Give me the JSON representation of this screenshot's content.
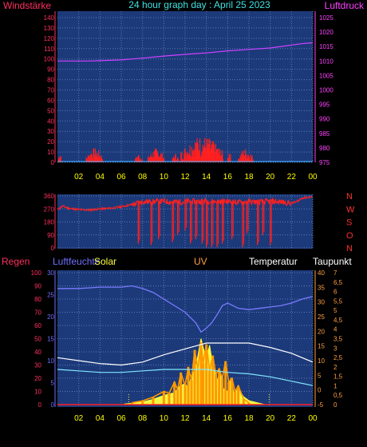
{
  "title": "24 hour graph day : April 25 2023",
  "labels": {
    "windstaerke": "Windstärke",
    "luftdruck": "Luftdruck",
    "regen": "Regen",
    "luftfeuchte": "Luftfeuchte",
    "solar": "Solar",
    "uv": "UV",
    "temperatur": "Temperatur",
    "taupunkt": "Taupunkt"
  },
  "colors": {
    "panel": "#1c3a7a",
    "grid": "#5a78b0",
    "wind": "#ff2020",
    "pressure": "#d040ff",
    "humidity": "#7a7aff",
    "temperature": "#ffffff",
    "dewpoint": "#80e8ff",
    "solar": "#ffff40",
    "uv": "#ff9900",
    "axis_wind": "#ff3060",
    "axis_pressure": "#ff40ff",
    "axis_humidity": "#7070ff",
    "axis_temp": "#ffa040",
    "tick_time": "#ffff00"
  },
  "chart_data": [
    {
      "type": "bar",
      "name": "wind_pressure",
      "x_ticks": [
        "02",
        "04",
        "06",
        "08",
        "10",
        "12",
        "14",
        "16",
        "18",
        "20",
        "22",
        "00"
      ],
      "y_left": {
        "label": "Windstärke",
        "ticks": [
          0,
          10,
          20,
          30,
          40,
          50,
          60,
          70,
          80,
          90,
          100,
          110,
          120,
          130,
          140
        ],
        "ylim": [
          0,
          140
        ]
      },
      "y_right": {
        "label": "Luftdruck",
        "ticks": [
          975,
          980,
          985,
          990,
          995,
          1000,
          1005,
          1010,
          1015,
          1020,
          1025
        ],
        "ylim": [
          975,
          1025
        ]
      },
      "wind_bursts": [
        {
          "x": [
            0.1,
            0.4
          ],
          "max": 12
        },
        {
          "x": [
            2.7,
            4.3
          ],
          "max": 14
        },
        {
          "x": [
            7.3,
            8.0
          ],
          "max": 9
        },
        {
          "x": [
            8.5,
            10.1
          ],
          "max": 14
        },
        {
          "x": [
            10.8,
            11.4
          ],
          "max": 9
        },
        {
          "x": [
            11.6,
            15.6
          ],
          "max": 26
        },
        {
          "x": [
            16.0,
            16.3
          ],
          "max": 14
        },
        {
          "x": [
            17.0,
            18.4
          ],
          "max": 14
        }
      ],
      "pressure": [
        [
          0,
          1010
        ],
        [
          3,
          1010
        ],
        [
          6,
          1010.4
        ],
        [
          8,
          1011
        ],
        [
          10,
          1011.7
        ],
        [
          12,
          1012.3
        ],
        [
          14,
          1012.8
        ],
        [
          16,
          1013.5
        ],
        [
          18,
          1014
        ],
        [
          20,
          1014.5
        ],
        [
          22,
          1015.5
        ],
        [
          23,
          1016
        ],
        [
          24,
          1016.3
        ]
      ]
    },
    {
      "type": "line",
      "name": "wind_direction",
      "y_left": {
        "ticks": [
          0,
          90,
          180,
          270,
          360
        ],
        "ylim": [
          0,
          360
        ]
      },
      "y_right": {
        "ticks": [
          "N",
          "W",
          "S",
          "O",
          "N"
        ]
      },
      "direction": [
        [
          0,
          265
        ],
        [
          0.5,
          290
        ],
        [
          1,
          275
        ],
        [
          2,
          265
        ],
        [
          3,
          262
        ],
        [
          4,
          270
        ],
        [
          5,
          275
        ],
        [
          6,
          285
        ],
        [
          7,
          300
        ],
        [
          7.5,
          310
        ],
        [
          8,
          320
        ],
        [
          9,
          320
        ],
        [
          10,
          322
        ],
        [
          11,
          318
        ],
        [
          12,
          320
        ],
        [
          13,
          322
        ],
        [
          14,
          325
        ],
        [
          15,
          320
        ],
        [
          16,
          322
        ],
        [
          17,
          315
        ],
        [
          18,
          320
        ],
        [
          19,
          318
        ],
        [
          20,
          322
        ],
        [
          21,
          318
        ],
        [
          22,
          310
        ],
        [
          22.5,
          320
        ],
        [
          23,
          345
        ],
        [
          24,
          355
        ]
      ],
      "drops": [
        {
          "x": 7.6,
          "to": 30
        },
        {
          "x": 8.8,
          "to": 20
        },
        {
          "x": 9.5,
          "to": 60
        },
        {
          "x": 10.8,
          "to": 40
        },
        {
          "x": 11.3,
          "to": 90
        },
        {
          "x": 12.0,
          "to": 120
        },
        {
          "x": 12.5,
          "to": 30
        },
        {
          "x": 13.0,
          "to": 60
        },
        {
          "x": 13.6,
          "to": 30
        },
        {
          "x": 14.0,
          "to": 5
        },
        {
          "x": 14.5,
          "to": 5
        },
        {
          "x": 15.0,
          "to": 5
        },
        {
          "x": 15.5,
          "to": 30
        },
        {
          "x": 16.4,
          "to": 60
        },
        {
          "x": 17.4,
          "to": 5
        },
        {
          "x": 17.8,
          "to": 100
        },
        {
          "x": 18.8,
          "to": 20
        },
        {
          "x": 19.3,
          "to": 90
        },
        {
          "x": 20.0,
          "to": 20
        }
      ]
    },
    {
      "type": "line",
      "name": "rain_humidity_solar_uv_temp",
      "y_left": {
        "label": "Regen",
        "ticks": [
          0,
          10,
          20,
          30,
          40,
          50,
          60,
          70,
          80,
          90,
          100
        ],
        "ylim": [
          0,
          100
        ]
      },
      "y_humidity": {
        "label": "Luftfeuchte",
        "ticks": [
          0,
          5,
          10,
          15,
          20,
          25,
          30
        ],
        "ylim": [
          0,
          30
        ]
      },
      "y_temp": {
        "label": "Temperatur",
        "ticks": [
          -5,
          0,
          5,
          10,
          15,
          20,
          25,
          30,
          35,
          40
        ],
        "ylim": [
          -5,
          40
        ]
      },
      "y_uv": {
        "label": "Taupunkt",
        "ticks": [
          "0",
          "0,5",
          "1",
          "1,5",
          "2",
          "2,5",
          "3",
          "3,5",
          "4",
          "4,5",
          "5",
          "5,5",
          "6",
          "6,5",
          "7"
        ],
        "ylim": [
          0,
          7
        ]
      },
      "humidity": [
        [
          0,
          88
        ],
        [
          2,
          88
        ],
        [
          4,
          89
        ],
        [
          6,
          89
        ],
        [
          7,
          90
        ],
        [
          8,
          88
        ],
        [
          9,
          85
        ],
        [
          10,
          80
        ],
        [
          11,
          75
        ],
        [
          12,
          70
        ],
        [
          13,
          62
        ],
        [
          13.5,
          55
        ],
        [
          14,
          58
        ],
        [
          14.5,
          62
        ],
        [
          15,
          68
        ],
        [
          15.5,
          75
        ],
        [
          16,
          77
        ],
        [
          17,
          73
        ],
        [
          18,
          72
        ],
        [
          19,
          73
        ],
        [
          20,
          74
        ],
        [
          21,
          75
        ],
        [
          22,
          77
        ],
        [
          23,
          80
        ],
        [
          24,
          82
        ]
      ],
      "temperature": [
        [
          0,
          11
        ],
        [
          2,
          10
        ],
        [
          4,
          9
        ],
        [
          6,
          8.5
        ],
        [
          8,
          9.5
        ],
        [
          10,
          12
        ],
        [
          12,
          14
        ],
        [
          14,
          16
        ],
        [
          16,
          16
        ],
        [
          18,
          16
        ],
        [
          20,
          14.5
        ],
        [
          22,
          12.5
        ],
        [
          24,
          9.5
        ]
      ],
      "dewpoint": [
        [
          0,
          7
        ],
        [
          2,
          6.5
        ],
        [
          4,
          6
        ],
        [
          6,
          6
        ],
        [
          8,
          6.5
        ],
        [
          10,
          7
        ],
        [
          12,
          7
        ],
        [
          14,
          7
        ],
        [
          16,
          6
        ],
        [
          18,
          5.5
        ],
        [
          20,
          4.5
        ],
        [
          22,
          3
        ],
        [
          24,
          1.5
        ]
      ],
      "solar": [
        [
          6.3,
          0.5
        ],
        [
          7,
          1
        ],
        [
          8,
          2
        ],
        [
          9,
          4
        ],
        [
          10,
          7
        ],
        [
          11,
          9
        ],
        [
          11.5,
          14
        ],
        [
          12,
          16
        ],
        [
          12.3,
          12
        ],
        [
          12.6,
          22
        ],
        [
          13,
          28
        ],
        [
          13.5,
          50
        ],
        [
          13.8,
          40
        ],
        [
          14,
          35
        ],
        [
          14.3,
          45
        ],
        [
          14.6,
          30
        ],
        [
          15,
          18
        ],
        [
          15.3,
          25
        ],
        [
          15.6,
          12
        ],
        [
          16,
          10
        ],
        [
          16.3,
          20
        ],
        [
          16.6,
          8
        ],
        [
          17,
          12
        ],
        [
          17.5,
          6
        ],
        [
          18,
          3
        ],
        [
          19,
          1
        ],
        [
          19.5,
          0
        ]
      ],
      "uv": [
        [
          7,
          0.1
        ],
        [
          8,
          0.2
        ],
        [
          9,
          0.4
        ],
        [
          10,
          0.7
        ],
        [
          10.5,
          0.6
        ],
        [
          11,
          1.2
        ],
        [
          11.3,
          0.8
        ],
        [
          11.6,
          1.7
        ],
        [
          12,
          1.0
        ],
        [
          12.3,
          2.0
        ],
        [
          12.6,
          1.3
        ],
        [
          12.9,
          2.9
        ],
        [
          13.2,
          1.9
        ],
        [
          13.5,
          3.3
        ],
        [
          13.7,
          2.2
        ],
        [
          14,
          3.2
        ],
        [
          14.3,
          1.8
        ],
        [
          14.6,
          2.6
        ],
        [
          14.9,
          1.6
        ],
        [
          15.2,
          1.9
        ],
        [
          15.5,
          1.4
        ],
        [
          15.8,
          2.3
        ],
        [
          16.1,
          1.2
        ],
        [
          16.4,
          1.4
        ],
        [
          16.7,
          0.7
        ],
        [
          17,
          1.0
        ],
        [
          17.5,
          0.3
        ],
        [
          18,
          0.1
        ]
      ],
      "solar_ticks": [
        6.7,
        19.9
      ]
    }
  ]
}
